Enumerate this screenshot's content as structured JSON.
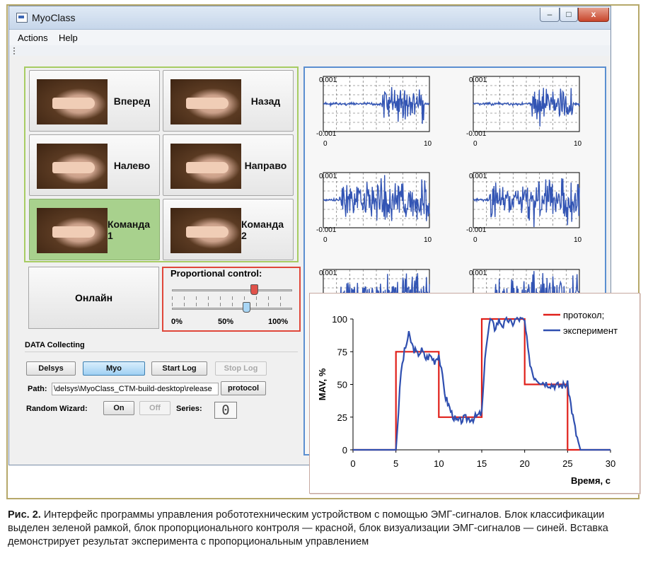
{
  "window": {
    "title": "MyoClass",
    "min": "–",
    "max": "□",
    "close": "x"
  },
  "menu": [
    "Actions",
    "Help"
  ],
  "commands": [
    {
      "label": "Вперед",
      "active": false
    },
    {
      "label": "Назад",
      "active": false
    },
    {
      "label": "Налево",
      "active": false
    },
    {
      "label": "Направо",
      "active": false
    },
    {
      "label": "Команда 1",
      "active": true
    },
    {
      "label": "Команда 2",
      "active": false
    }
  ],
  "online_button": "Онлайн",
  "proportional": {
    "title": "Proportional control:",
    "slider1_value": 0.68,
    "slider2_value": 0.62,
    "ticks": [
      "0%",
      "50%",
      "100%"
    ]
  },
  "data_collecting": {
    "title": "DATA Collecting",
    "delsys": "Delsys",
    "myo": "Myo",
    "start_log": "Start Log",
    "stop_log": "Stop Log",
    "path_label": "Path:",
    "path_value": "\\delsys\\MyoClass_CTM-build-desktop\\release",
    "protocol": "protocol",
    "random_wizard_label": "Random Wizard:",
    "on": "On",
    "off": "Off",
    "series_label": "Series:",
    "series_value": "0"
  },
  "emg_plots": {
    "ytop": "0.001",
    "ybottom": "-0.001",
    "xmin": "0",
    "xmax": "10"
  },
  "chart_data": {
    "type": "line",
    "x": [
      0,
      5,
      5,
      10,
      10,
      15,
      15,
      20,
      20,
      25,
      25,
      30
    ],
    "series": [
      {
        "name": "протокол;",
        "color": "#e0201a",
        "x": [
          0,
          5,
          5,
          10,
          10,
          15,
          15,
          20,
          20,
          25,
          25,
          30
        ],
        "values": [
          0,
          0,
          75,
          75,
          25,
          25,
          100,
          100,
          50,
          50,
          0,
          0
        ]
      },
      {
        "name": "эксперимент",
        "color": "#2f4fb0",
        "x": [
          0,
          5,
          5.3,
          5.6,
          6,
          6.5,
          7,
          7.5,
          8,
          8.5,
          9,
          9.5,
          10,
          10.3,
          10.8,
          11.5,
          12,
          12.5,
          13,
          14,
          15,
          15.5,
          16,
          16.5,
          17,
          17.5,
          18,
          18.5,
          19,
          19.5,
          20,
          20.5,
          21,
          21.5,
          22,
          23,
          24,
          25,
          25.5,
          26,
          26.5,
          27,
          30
        ],
        "values": [
          0,
          0,
          30,
          60,
          75,
          88,
          78,
          73,
          76,
          70,
          72,
          68,
          73,
          60,
          40,
          28,
          22,
          22,
          24,
          24,
          28,
          80,
          100,
          93,
          99,
          95,
          100,
          96,
          100,
          100,
          98,
          70,
          57,
          54,
          52,
          50,
          49,
          50,
          30,
          12,
          0,
          0,
          0
        ]
      }
    ],
    "xlabel": "Время, с",
    "ylabel": "MAV, %",
    "xlim": [
      0,
      30
    ],
    "ylim": [
      0,
      100
    ],
    "xticks": [
      0,
      5,
      10,
      15,
      20,
      25,
      30
    ],
    "yticks": [
      0,
      25,
      50,
      75,
      100
    ],
    "legend": "top-right"
  },
  "caption": {
    "label": "Рис. 2.",
    "text": " Интерфейс программы управления робототехническим устройством с помощью ЭМГ-сигналов. Блок классификации выделен зеленой рамкой, блок пропорционального контроля — красной, блок визуализации ЭМГ-сигналов — синей. Вставка демонстрирует результат эксперимента с пропорциональным управлением"
  }
}
